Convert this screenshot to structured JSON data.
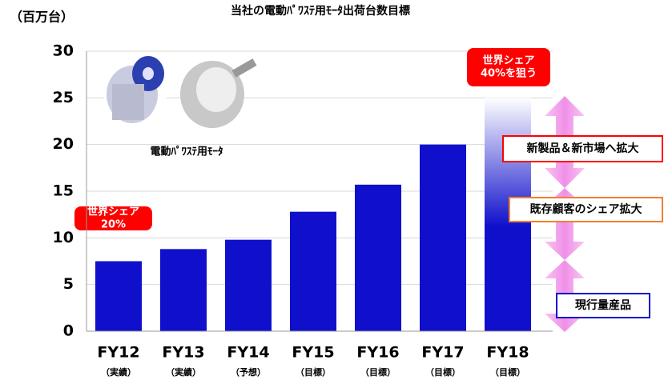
{
  "chart_data": {
    "type": "bar",
    "title": "当社の電動ﾊﾟﾜｽﾃ用ﾓｰﾀ出荷台数目標",
    "y_label": "（百万台）",
    "image_caption": "電動ﾊﾟﾜｽﾃ用ﾓｰﾀ",
    "categories": [
      "FY12",
      "FY13",
      "FY14",
      "FY15",
      "FY16",
      "FY17",
      "FY18"
    ],
    "category_notes": [
      "（実績）",
      "（実績）",
      "（予想）",
      "（目標）",
      "（目標）",
      "（目標）",
      "（目標）"
    ],
    "values": [
      7.5,
      8.8,
      9.8,
      12.8,
      15.7,
      20,
      25
    ],
    "color": "#1010cc",
    "ylim": [
      0,
      30
    ],
    "yticks": [
      0,
      5,
      10,
      15,
      20,
      25,
      30
    ],
    "grid": true,
    "share_callouts": [
      [
        "世界シェア",
        "20%"
      ],
      [
        "世界シェア",
        "40%を狙う"
      ]
    ],
    "strategy_labels": [
      "新製品＆新市場へ拡大",
      "既存顧客のシェア拡大",
      "現行量産品"
    ]
  }
}
